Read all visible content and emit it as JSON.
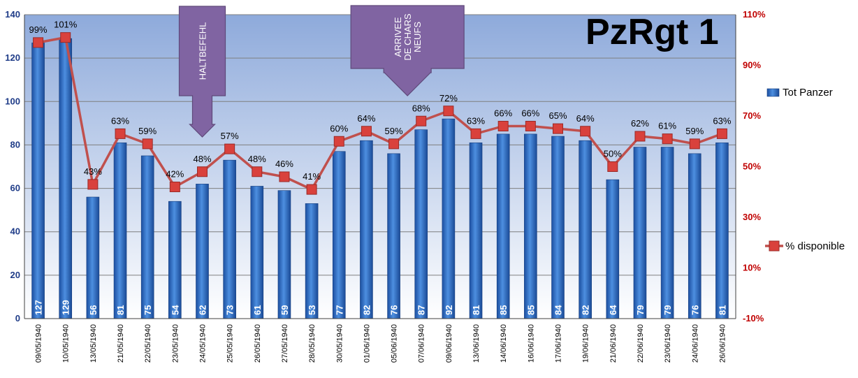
{
  "chart_data": {
    "type": "bar-line",
    "title": "PzRgt 1",
    "categories": [
      "09/05/1940",
      "10/05/1940",
      "13/05/1940",
      "21/05/1940",
      "22/05/1940",
      "23/05/1940",
      "24/05/1940",
      "25/05/1940",
      "26/05/1940",
      "27/05/1940",
      "28/05/1940",
      "30/05/1940",
      "01/06/1940",
      "05/06/1940",
      "07/06/1940",
      "09/06/1940",
      "13/06/1940",
      "14/06/1940",
      "16/06/1940",
      "17/06/1940",
      "19/06/1940",
      "21/06/1940",
      "22/06/1940",
      "23/06/1940",
      "24/06/1940",
      "26/06/1940"
    ],
    "series": [
      {
        "name": "Tot Panzer",
        "type": "bar",
        "axis": "left",
        "color": "#2e6fc7",
        "values": [
          127,
          129,
          56,
          81,
          75,
          54,
          62,
          73,
          61,
          59,
          53,
          77,
          82,
          76,
          87,
          92,
          81,
          85,
          85,
          84,
          82,
          64,
          79,
          79,
          76,
          81
        ]
      },
      {
        "name": "% disponible",
        "type": "line",
        "axis": "right",
        "color": "#c0504d",
        "values": [
          99,
          101,
          43,
          63,
          59,
          42,
          48,
          57,
          48,
          46,
          41,
          60,
          64,
          59,
          68,
          72,
          63,
          66,
          66,
          65,
          64,
          50,
          62,
          61,
          59,
          63
        ],
        "labels": [
          "99%",
          "101%",
          "43%",
          "63%",
          "59%",
          "42%",
          "48%",
          "57%",
          "48%",
          "46%",
          "41%",
          "60%",
          "64%",
          "59%",
          "68%",
          "72%",
          "63%",
          "66%",
          "66%",
          "65%",
          "64%",
          "50%",
          "62%",
          "61%",
          "59%",
          "63%"
        ]
      }
    ],
    "y_left": {
      "range": [
        0,
        140
      ],
      "ticks": [
        0,
        20,
        40,
        60,
        80,
        100,
        120,
        140
      ],
      "tick_labels": [
        "0",
        "20",
        "40",
        "60",
        "80",
        "100",
        "120",
        "140"
      ]
    },
    "y_right": {
      "range": [
        -10,
        110
      ],
      "ticks": [
        -10,
        10,
        30,
        50,
        70,
        90,
        110
      ],
      "tick_labels": [
        "-10%",
        "10%",
        "30%",
        "50%",
        "70%",
        "90%",
        "110%"
      ]
    },
    "grid": true,
    "legend_position": "right",
    "annotations": [
      {
        "text": [
          "HALTBEFEHL"
        ],
        "category_index": 6
      },
      {
        "text": [
          "ARRIVEE",
          "DE CHARS",
          "NEUFS"
        ],
        "category_index": 13.5
      }
    ]
  }
}
